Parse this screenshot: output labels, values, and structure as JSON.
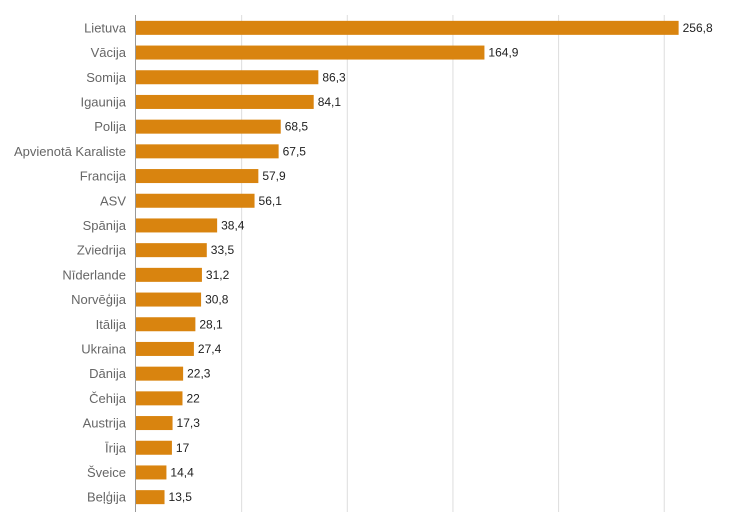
{
  "colors": {
    "bar": "#d9840f",
    "grid": "#dddddd"
  },
  "chart_data": {
    "type": "bar",
    "orientation": "horizontal",
    "title": "",
    "xlabel": "",
    "ylabel": "",
    "xlim": [
      0,
      300
    ],
    "grid": true,
    "legend": "none",
    "categories": [
      "Lietuva",
      "Vācija",
      "Somija",
      "Igaunija",
      "Polija",
      "Apvienotā Karaliste",
      "Francija",
      "ASV",
      "Spānija",
      "Zviedrija",
      "Nīderlande",
      "Norvēģija",
      "Itālija",
      "Ukraina",
      "Dānija",
      "Čehija",
      "Austrija",
      "Īrija",
      "Šveice",
      "Beļģija"
    ],
    "values": [
      256.8,
      164.9,
      86.3,
      84.1,
      68.5,
      67.5,
      57.9,
      56.1,
      38.4,
      33.5,
      31.2,
      30.8,
      28.1,
      27.4,
      22.3,
      22,
      17.3,
      17,
      14.4,
      13.5
    ],
    "value_labels": [
      "256,8",
      "164,9",
      "86,3",
      "84,1",
      "68,5",
      "67,5",
      "57,9",
      "56,1",
      "38,4",
      "33,5",
      "31,2",
      "30,8",
      "28,1",
      "27,4",
      "22,3",
      "22",
      "17,3",
      "17",
      "14,4",
      "13,5"
    ]
  }
}
